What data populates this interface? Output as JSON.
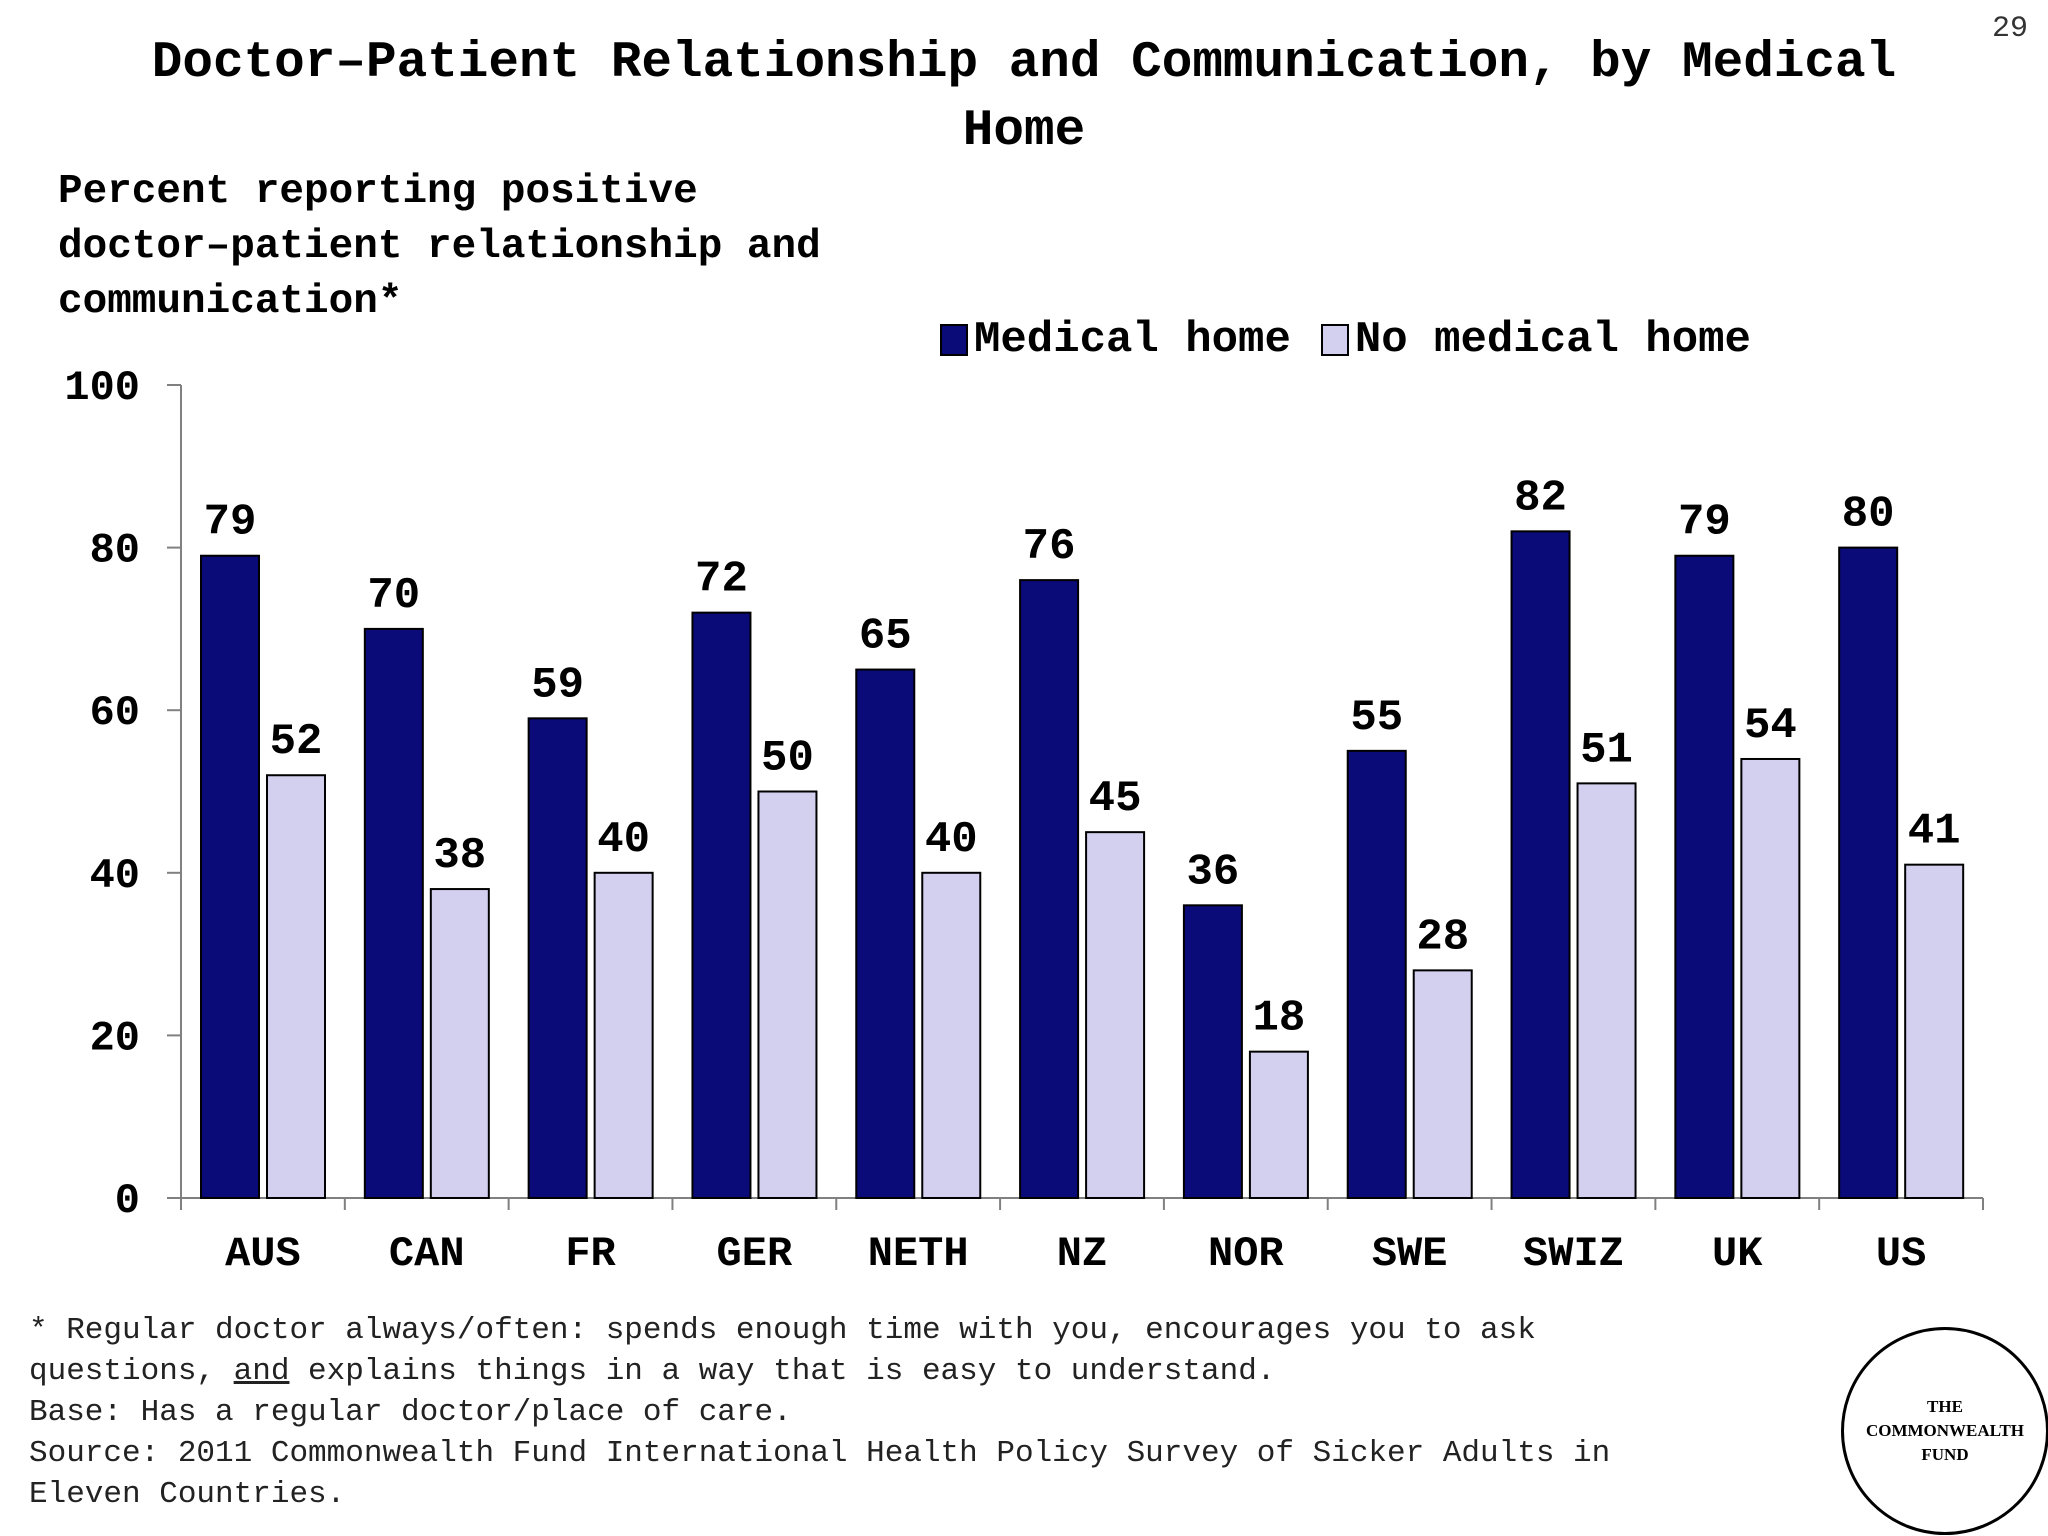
{
  "slide_number": "29",
  "title_line1": "Doctor–Patient Relationship and Communication, by Medical",
  "title_line2": "Home",
  "subtitle_lines": [
    "Percent reporting positive",
    "doctor–patient relationship and",
    "communication*"
  ],
  "colors": {
    "medical_home": "#0a0a78",
    "no_medical_home": "#d3d0ef",
    "axis": "#808080"
  },
  "chart_data": {
    "type": "bar",
    "categories": [
      "AUS",
      "CAN",
      "FR",
      "GER",
      "NETH",
      "NZ",
      "NOR",
      "SWE",
      "SWIZ",
      "UK",
      "US"
    ],
    "series": [
      {
        "name": "Medical home",
        "values": [
          79,
          70,
          59,
          72,
          65,
          76,
          36,
          55,
          82,
          79,
          80
        ]
      },
      {
        "name": "No medical home",
        "values": [
          52,
          38,
          40,
          50,
          40,
          45,
          18,
          28,
          51,
          54,
          41
        ]
      }
    ],
    "ylim": [
      0,
      100
    ],
    "yticks": [
      "0",
      "20",
      "40",
      "60",
      "80",
      "100"
    ],
    "data_labels": true,
    "legend_position": "top-right",
    "grid": false
  },
  "footnotes": {
    "line1": "* Regular doctor always/often: spends enough time with you, encourages you to ask",
    "line2_before": "questions, ",
    "line2_underlined": "and",
    "line2_after": " explains things in a way that is easy to understand.",
    "base": "Base: Has a regular doctor/place of care.",
    "source_line1": "Source: 2011 Commonwealth Fund International Health Policy Survey of Sicker Adults in",
    "source_line2": "Eleven Countries."
  },
  "logo": {
    "line1": "THE",
    "line2": "COMMONWEALTH",
    "line3": "FUND"
  }
}
